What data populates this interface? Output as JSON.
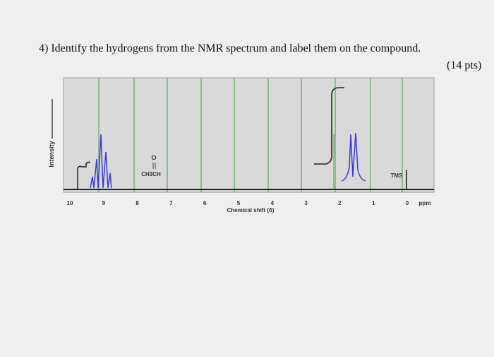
{
  "question": {
    "text": "4) Identify the hydrogens from the NMR spectrum and label them on the compound.",
    "points": "(14 pts)"
  },
  "spectrum": {
    "y_label": "Intensity",
    "x_label": "Chemical shift (δ)",
    "x_unit": "ppm",
    "x_ticks": [
      "10",
      "9",
      "8",
      "7",
      "6",
      "5",
      "4",
      "3",
      "2",
      "1",
      "0"
    ],
    "compound": {
      "oxygen": "O",
      "formula": "CH3CH"
    },
    "reference": "TMS"
  }
}
